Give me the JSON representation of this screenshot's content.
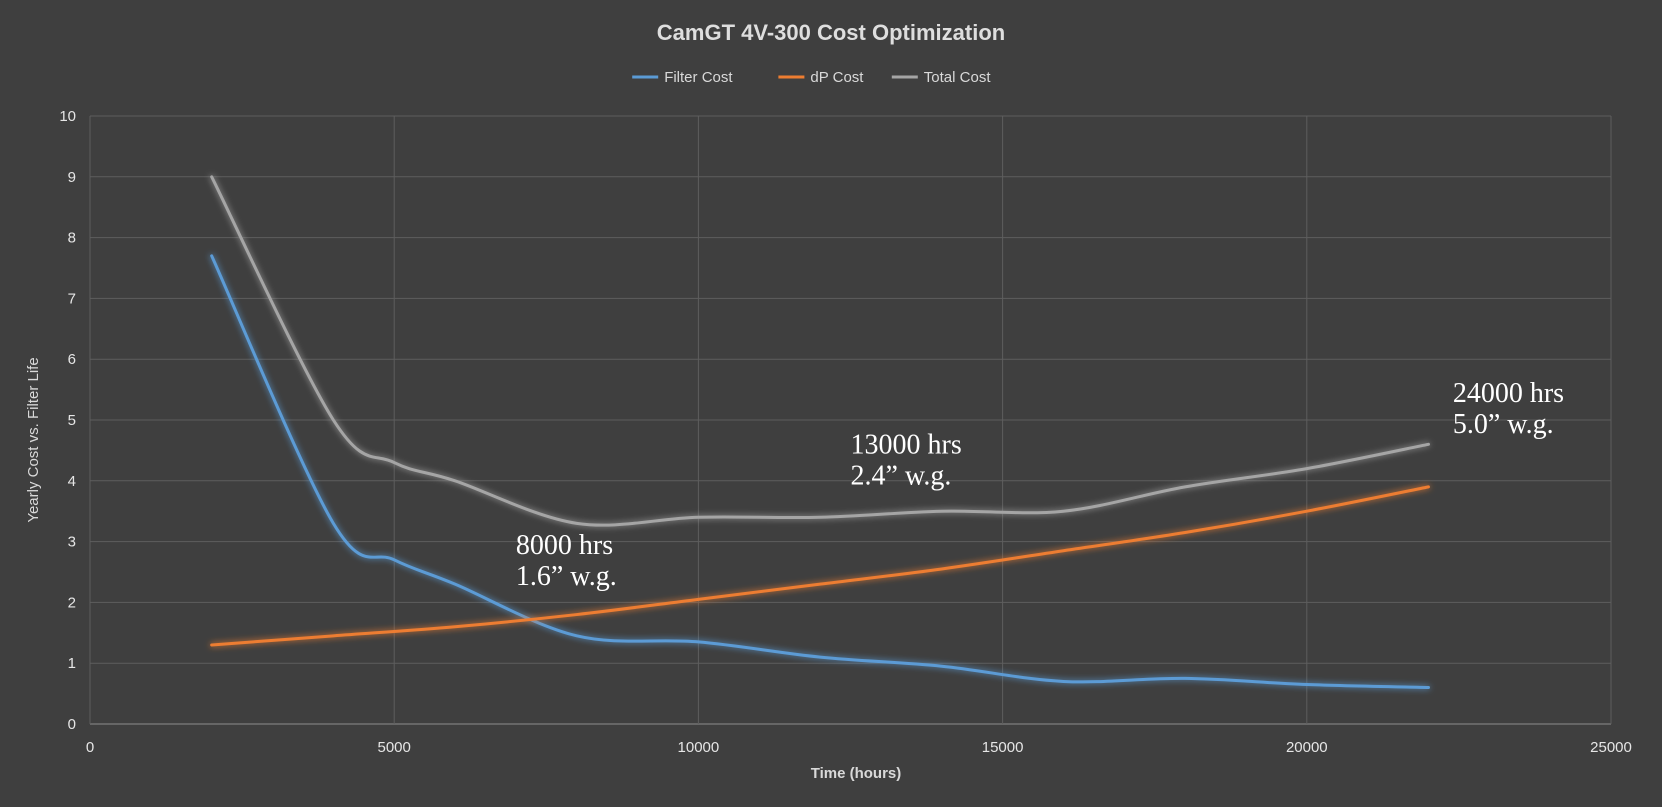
{
  "chart_data": {
    "type": "line",
    "title": "CamGT 4V-300 Cost Optimization",
    "xlabel": "Time (hours)",
    "ylabel": "Yearly Cost vs. Filter Life",
    "xlim": [
      0,
      25000
    ],
    "ylim": [
      0,
      10
    ],
    "xticks": [
      0,
      5000,
      10000,
      15000,
      20000,
      25000
    ],
    "yticks": [
      0,
      1,
      2,
      3,
      4,
      5,
      6,
      7,
      8,
      9,
      10
    ],
    "grid": true,
    "legend_position": "top-center",
    "series": [
      {
        "name": "Filter Cost",
        "color": "#5b9bd5",
        "x": [
          2000,
          4000,
          5000,
          6000,
          8000,
          10000,
          12000,
          14000,
          16000,
          18000,
          20000,
          22000
        ],
        "y": [
          7.7,
          3.3,
          2.7,
          2.3,
          1.45,
          1.35,
          1.1,
          0.95,
          0.7,
          0.75,
          0.65,
          0.6
        ]
      },
      {
        "name": "dP Cost",
        "color": "#ed7d31",
        "x": [
          2000,
          4000,
          6000,
          8000,
          10000,
          12000,
          14000,
          16000,
          18000,
          20000,
          22000
        ],
        "y": [
          1.3,
          1.45,
          1.6,
          1.8,
          2.05,
          2.3,
          2.55,
          2.85,
          3.15,
          3.5,
          3.9
        ]
      },
      {
        "name": "Total Cost",
        "color": "#a5a5a5",
        "x": [
          2000,
          4000,
          5000,
          6000,
          8000,
          10000,
          12000,
          14000,
          16000,
          18000,
          20000,
          22000
        ],
        "y": [
          9.0,
          5.0,
          4.3,
          4.0,
          3.3,
          3.4,
          3.4,
          3.5,
          3.5,
          3.9,
          4.2,
          4.6
        ]
      }
    ],
    "annotations": [
      {
        "lines": [
          "8000 hrs",
          "1.6” w.g."
        ],
        "x": 7000,
        "y": 2.8
      },
      {
        "lines": [
          "13000 hrs",
          "2.4” w.g."
        ],
        "x": 12500,
        "y": 4.45
      },
      {
        "lines": [
          "24000 hrs",
          "5.0” w.g."
        ],
        "x": 22400,
        "y": 5.3
      }
    ]
  }
}
